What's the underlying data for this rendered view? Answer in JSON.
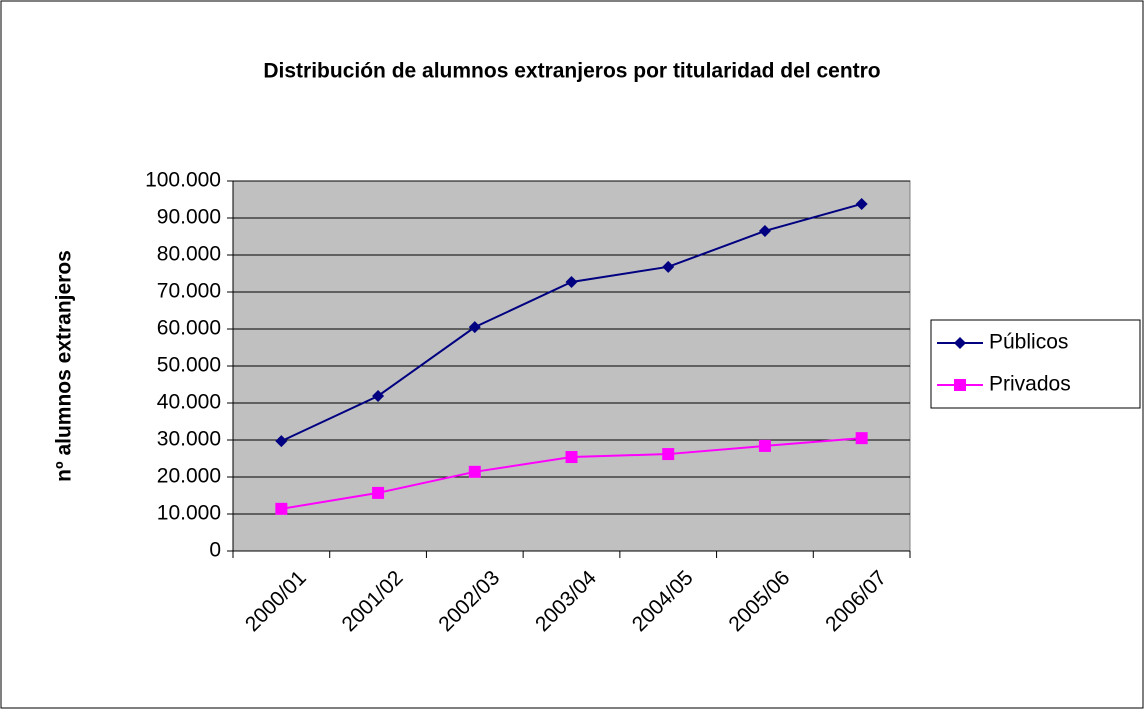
{
  "chart_data": {
    "type": "line",
    "title": "Distribución de alumnos extranjeros por titularidad del centro",
    "y_label": "nº alumnos extranjeros",
    "categories": [
      "2000/01",
      "2001/02",
      "2002/03",
      "2003/04",
      "2004/05",
      "2005/06",
      "2006/07"
    ],
    "series": [
      {
        "name": "Públicos",
        "color": "#000080",
        "marker": "diamond",
        "values": [
          29700,
          41900,
          60500,
          72700,
          76800,
          86500,
          93800
        ]
      },
      {
        "name": "Privados",
        "color": "#FF00FF",
        "marker": "square",
        "values": [
          11400,
          15700,
          21400,
          25400,
          26200,
          28400,
          30500
        ]
      }
    ],
    "ylim": [
      0,
      100000
    ],
    "yticks": [
      0,
      {
        "value": 10000,
        "label": "10.000"
      },
      {
        "value": 20000,
        "label": "20.000"
      },
      {
        "value": 30000,
        "label": "30.000"
      },
      {
        "value": 40000,
        "label": "40.000"
      },
      {
        "value": 50000,
        "label": "50.000"
      },
      {
        "value": 60000,
        "label": "60.000"
      },
      {
        "value": 70000,
        "label": "70.000"
      },
      {
        "value": 80000,
        "label": "80.000"
      },
      {
        "value": 90000,
        "label": "90.000"
      },
      {
        "value": 100000,
        "label": "100.000"
      }
    ],
    "grid": true,
    "plot_background": "#C0C0C0",
    "legend": "right"
  }
}
